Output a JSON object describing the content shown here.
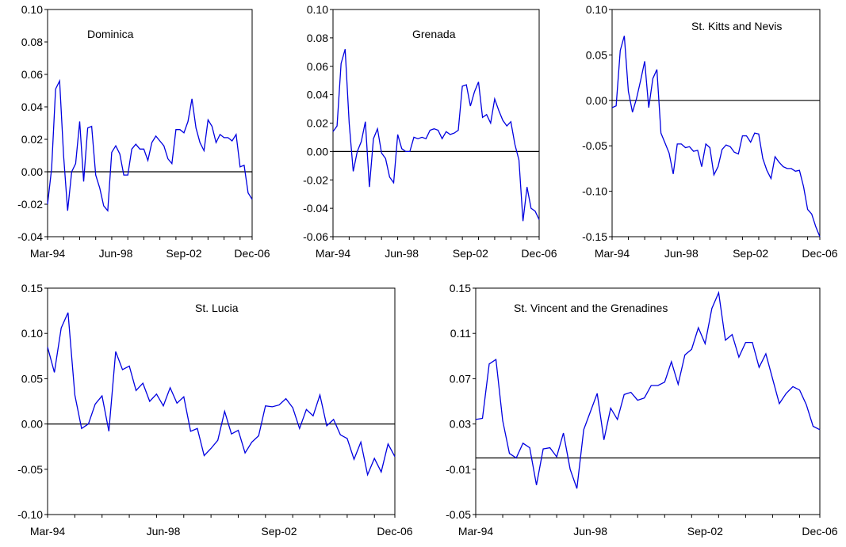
{
  "chart_data": [
    {
      "type": "line",
      "title": "Dominica",
      "ylim": [
        -0.04,
        0.1
      ],
      "yticks": [
        -0.04,
        -0.02,
        0.0,
        0.02,
        0.04,
        0.06,
        0.08,
        0.1
      ],
      "ytick_labels": [
        "-0.04",
        "-0.02",
        "0.00",
        "0.02",
        "0.04",
        "0.06",
        "0.08",
        "0.10"
      ],
      "xtick_labels": [
        "Mar-94",
        "Jun-98",
        "Sep-02",
        "Dec-06"
      ],
      "zero_line": true,
      "series": [
        {
          "values": [
            -0.02,
            0.002,
            0.051,
            0.056,
            0.01,
            -0.024,
            0.0,
            0.005,
            0.031,
            -0.006,
            0.027,
            0.028,
            -0.002,
            -0.01,
            -0.021,
            -0.024,
            0.012,
            0.016,
            0.011,
            -0.002,
            -0.002,
            0.014,
            0.017,
            0.014,
            0.014,
            0.007,
            0.018,
            0.022,
            0.019,
            0.016,
            0.008,
            0.005,
            0.026,
            0.026,
            0.024,
            0.031,
            0.045,
            0.027,
            0.018,
            0.013,
            0.032,
            0.028,
            0.018,
            0.023,
            0.021,
            0.021,
            0.019,
            0.023,
            0.003,
            0.004,
            -0.013,
            -0.017
          ]
        }
      ]
    },
    {
      "type": "line",
      "title": "Grenada",
      "ylim": [
        -0.06,
        0.1
      ],
      "yticks": [
        -0.06,
        -0.04,
        -0.02,
        0.0,
        0.02,
        0.04,
        0.06,
        0.08,
        0.1
      ],
      "ytick_labels": [
        "-0.06",
        "-0.04",
        "-0.02",
        "0.00",
        "0.02",
        "0.04",
        "0.06",
        "0.08",
        "0.10"
      ],
      "xtick_labels": [
        "Mar-94",
        "Jun-98",
        "Sep-02",
        "Dec-06"
      ],
      "zero_line": true,
      "series": [
        {
          "values": [
            0.014,
            0.018,
            0.062,
            0.072,
            0.02,
            -0.014,
            0.0,
            0.007,
            0.021,
            -0.025,
            0.009,
            0.016,
            -0.001,
            -0.005,
            -0.018,
            -0.022,
            0.012,
            0.002,
            0.0,
            0.0,
            0.01,
            0.009,
            0.01,
            0.009,
            0.015,
            0.016,
            0.015,
            0.009,
            0.014,
            0.012,
            0.013,
            0.015,
            0.046,
            0.047,
            0.032,
            0.042,
            0.049,
            0.024,
            0.026,
            0.02,
            0.037,
            0.029,
            0.022,
            0.018,
            0.021,
            0.005,
            -0.006,
            -0.049,
            -0.025,
            -0.04,
            -0.042,
            -0.048
          ]
        }
      ]
    },
    {
      "type": "line",
      "title": "St. Kitts and Nevis",
      "ylim": [
        -0.15,
        0.1
      ],
      "yticks": [
        -0.15,
        -0.1,
        -0.05,
        0.0,
        0.05,
        0.1
      ],
      "ytick_labels": [
        "-0.15",
        "-0.10",
        "-0.05",
        "0.00",
        "0.05",
        "0.10"
      ],
      "xtick_labels": [
        "Mar-94",
        "Jun-98",
        "Sep-02",
        "Dec-06"
      ],
      "zero_line": true,
      "series": [
        {
          "values": [
            -0.008,
            -0.006,
            0.055,
            0.071,
            0.01,
            -0.013,
            0.002,
            0.022,
            0.043,
            -0.008,
            0.024,
            0.034,
            -0.036,
            -0.047,
            -0.058,
            -0.081,
            -0.048,
            -0.048,
            -0.052,
            -0.051,
            -0.056,
            -0.055,
            -0.073,
            -0.048,
            -0.052,
            -0.082,
            -0.073,
            -0.054,
            -0.049,
            -0.051,
            -0.057,
            -0.059,
            -0.039,
            -0.039,
            -0.046,
            -0.036,
            -0.037,
            -0.064,
            -0.077,
            -0.086,
            -0.062,
            -0.068,
            -0.073,
            -0.075,
            -0.075,
            -0.078,
            -0.077,
            -0.095,
            -0.12,
            -0.125,
            -0.139,
            -0.15
          ]
        }
      ]
    },
    {
      "type": "line",
      "title": "St. Lucia",
      "ylim": [
        -0.1,
        0.15
      ],
      "yticks": [
        -0.1,
        -0.05,
        0.0,
        0.05,
        0.1,
        0.15
      ],
      "ytick_labels": [
        "-0.10",
        "-0.05",
        "0.00",
        "0.05",
        "0.10",
        "0.15"
      ],
      "xtick_labels": [
        "Mar-94",
        "Jun-98",
        "Sep-02",
        "Dec-06"
      ],
      "zero_line": true,
      "series": [
        {
          "values": [
            0.085,
            0.057,
            0.106,
            0.123,
            0.032,
            -0.005,
            0.0,
            0.022,
            0.031,
            -0.008,
            0.08,
            0.06,
            0.064,
            0.037,
            0.045,
            0.025,
            0.033,
            0.02,
            0.04,
            0.023,
            0.03,
            -0.008,
            -0.005,
            -0.035,
            -0.027,
            -0.018,
            0.014,
            -0.011,
            -0.007,
            -0.032,
            -0.02,
            -0.013,
            0.02,
            0.019,
            0.021,
            0.028,
            0.018,
            -0.005,
            0.016,
            0.009,
            0.032,
            -0.002,
            0.005,
            -0.012,
            -0.016,
            -0.039,
            -0.02,
            -0.056,
            -0.038,
            -0.053,
            -0.022,
            -0.036
          ]
        }
      ]
    },
    {
      "type": "line",
      "title": "St. Vincent and the Grenadines",
      "ylim": [
        -0.05,
        0.15
      ],
      "yticks": [
        -0.05,
        -0.01,
        0.03,
        0.07,
        0.11,
        0.15
      ],
      "ytick_labels": [
        "-0.05",
        "-0.01",
        "0.03",
        "0.07",
        "0.11",
        "0.15"
      ],
      "xtick_labels": [
        "Mar-94",
        "Jun-98",
        "Sep-02",
        "Dec-06"
      ],
      "zero_line": true,
      "series": [
        {
          "values": [
            0.034,
            0.035,
            0.083,
            0.087,
            0.033,
            0.004,
            0.0,
            0.013,
            0.009,
            -0.024,
            0.008,
            0.009,
            0.001,
            0.022,
            -0.01,
            -0.027,
            0.025,
            0.041,
            0.057,
            0.016,
            0.044,
            0.034,
            0.056,
            0.058,
            0.051,
            0.053,
            0.064,
            0.064,
            0.067,
            0.085,
            0.065,
            0.091,
            0.096,
            0.115,
            0.101,
            0.132,
            0.146,
            0.104,
            0.109,
            0.089,
            0.102,
            0.102,
            0.08,
            0.092,
            0.07,
            0.048,
            0.057,
            0.063,
            0.06,
            0.047,
            0.028,
            0.025
          ]
        }
      ]
    }
  ]
}
